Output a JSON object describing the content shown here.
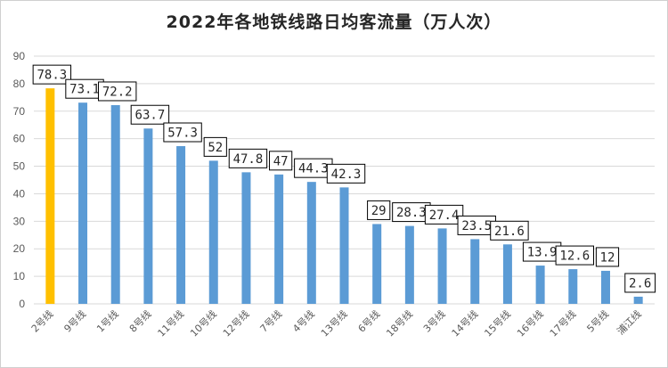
{
  "chart_data": {
    "type": "bar",
    "title": "2022年各地铁线路日均客流量（万人次）",
    "xlabel": "",
    "ylabel": "",
    "ylim": [
      0,
      90
    ],
    "ytick_step": 10,
    "grid": true,
    "categories": [
      "2号线",
      "9号线",
      "1号线",
      "8号线",
      "11号线",
      "10号线",
      "12号线",
      "7号线",
      "4号线",
      "13号线",
      "6号线",
      "18号线",
      "3号线",
      "14号线",
      "15号线",
      "16号线",
      "17号线",
      "5号线",
      "浦江线"
    ],
    "values": [
      78.3,
      73.1,
      72.2,
      63.7,
      57.3,
      52,
      47.8,
      47,
      44.3,
      42.3,
      29,
      28.3,
      27.4,
      23.5,
      21.6,
      13.9,
      12.6,
      12,
      2.6
    ],
    "labels": [
      "78.3",
      "73.1",
      "72.2",
      "63.7",
      "57.3",
      "52",
      "47.8",
      "47",
      "44.3",
      "42.3",
      "29",
      "28.3",
      "27.4",
      "23.5",
      "21.6",
      "13.9",
      "12.6",
      "12",
      "2.6"
    ],
    "highlight_index": 0,
    "colors": {
      "bar": "#5b9bd5",
      "highlight": "#ffc000",
      "grid": "#d9d9d9"
    }
  }
}
